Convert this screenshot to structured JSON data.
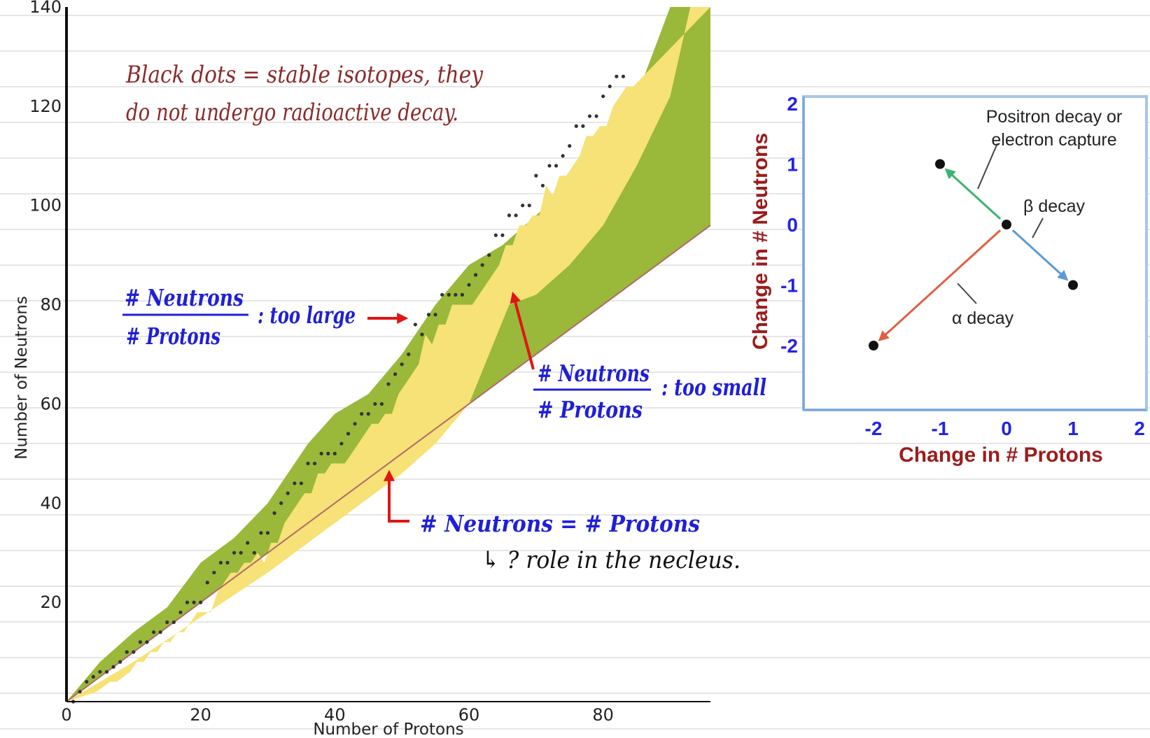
{
  "chart_data": [
    {
      "type": "scatter",
      "xlabel": "Number of Protons",
      "ylabel": "Number of Neutrons",
      "xlim": [
        0,
        96
      ],
      "ylim": [
        0,
        140
      ],
      "x_ticks": [
        "0",
        "20",
        "40",
        "60",
        "80"
      ],
      "y_ticks": [
        "20",
        "40",
        "60",
        "80",
        "100",
        "120",
        "140"
      ],
      "reference_line": {
        "label": "# Neutrons = # Protons",
        "points": [
          [
            0,
            0
          ],
          [
            96,
            96
          ]
        ]
      },
      "band_green_upper": [
        [
          0,
          0
        ],
        [
          5,
          8
        ],
        [
          10,
          14
        ],
        [
          15,
          19
        ],
        [
          20,
          28
        ],
        [
          25,
          33
        ],
        [
          30,
          40
        ],
        [
          33,
          46
        ],
        [
          36,
          52
        ],
        [
          40,
          58
        ],
        [
          45,
          62
        ],
        [
          50,
          70
        ],
        [
          55,
          80
        ],
        [
          60,
          88
        ],
        [
          65,
          92
        ],
        [
          70,
          98
        ],
        [
          75,
          104
        ],
        [
          80,
          112
        ],
        [
          85,
          122
        ],
        [
          90,
          140
        ],
        [
          96,
          140
        ]
      ],
      "band_yellow_lower": [
        [
          0,
          0
        ],
        [
          10,
          8
        ],
        [
          20,
          17
        ],
        [
          30,
          26
        ],
        [
          40,
          36
        ],
        [
          50,
          46
        ],
        [
          55,
          52
        ],
        [
          60,
          60
        ],
        [
          66,
          80
        ],
        [
          70,
          82
        ],
        [
          75,
          88
        ],
        [
          80,
          96
        ],
        [
          85,
          108
        ],
        [
          90,
          122
        ],
        [
          93,
          140
        ],
        [
          96,
          140
        ]
      ],
      "band_orange_upper": [
        [
          68,
          85
        ],
        [
          73,
          91
        ],
        [
          78,
          98
        ],
        [
          82,
          106
        ],
        [
          86,
          115
        ],
        [
          89,
          125
        ],
        [
          92,
          140
        ],
        [
          96,
          140
        ]
      ],
      "stable_isotopes_sample": [
        [
          1,
          0
        ],
        [
          2,
          2
        ],
        [
          3,
          4
        ],
        [
          4,
          5
        ],
        [
          5,
          6
        ],
        [
          6,
          6
        ],
        [
          7,
          7
        ],
        [
          8,
          8
        ],
        [
          9,
          10
        ],
        [
          10,
          10
        ],
        [
          11,
          12
        ],
        [
          12,
          12
        ],
        [
          13,
          14
        ],
        [
          14,
          14
        ],
        [
          15,
          16
        ],
        [
          16,
          16
        ],
        [
          17,
          18
        ],
        [
          18,
          20
        ],
        [
          19,
          20
        ],
        [
          20,
          20
        ],
        [
          21,
          24
        ],
        [
          22,
          26
        ],
        [
          23,
          28
        ],
        [
          24,
          28
        ],
        [
          25,
          30
        ],
        [
          26,
          30
        ],
        [
          27,
          32
        ],
        [
          28,
          30
        ],
        [
          29,
          34
        ],
        [
          30,
          34
        ],
        [
          31,
          38
        ],
        [
          32,
          40
        ],
        [
          33,
          42
        ],
        [
          34,
          44
        ],
        [
          35,
          44
        ],
        [
          36,
          48
        ],
        [
          37,
          48
        ],
        [
          38,
          50
        ],
        [
          39,
          50
        ],
        [
          40,
          50
        ],
        [
          41,
          52
        ],
        [
          42,
          54
        ],
        [
          43,
          56
        ],
        [
          44,
          58
        ],
        [
          45,
          58
        ],
        [
          46,
          60
        ],
        [
          47,
          60
        ],
        [
          48,
          64
        ],
        [
          49,
          66
        ],
        [
          50,
          68
        ],
        [
          51,
          70
        ],
        [
          52,
          76
        ],
        [
          53,
          74
        ],
        [
          54,
          78
        ],
        [
          55,
          78
        ],
        [
          56,
          82
        ],
        [
          57,
          82
        ],
        [
          58,
          82
        ],
        [
          59,
          82
        ],
        [
          60,
          84
        ],
        [
          61,
          86
        ],
        [
          62,
          88
        ],
        [
          63,
          90
        ],
        [
          64,
          94
        ],
        [
          65,
          94
        ],
        [
          66,
          98
        ],
        [
          67,
          98
        ],
        [
          68,
          100
        ],
        [
          69,
          100
        ],
        [
          70,
          106
        ],
        [
          71,
          104
        ],
        [
          72,
          108
        ],
        [
          73,
          108
        ],
        [
          74,
          110
        ],
        [
          75,
          112
        ],
        [
          76,
          116
        ],
        [
          77,
          116
        ],
        [
          78,
          118
        ],
        [
          79,
          118
        ],
        [
          80,
          122
        ],
        [
          81,
          124
        ],
        [
          82,
          126
        ],
        [
          83,
          126
        ]
      ],
      "annotations": {
        "stable_note_line1": "Black dots = stable isotopes, they",
        "stable_note_line2": "do not undergo radioactive decay.",
        "ratio_large_numerator": "# Neutrons",
        "ratio_large_denominator": "# Protons",
        "ratio_large_suffix": ": too large",
        "ratio_small_numerator": "# Neutrons",
        "ratio_small_denominator": "# Protons",
        "ratio_small_suffix": ": too small",
        "equal_line_label": "# Neutrons  =  # Protons",
        "equal_line_note": "↳ ? role in the necleus."
      },
      "colors": {
        "green_band": "#9ab83a",
        "yellow_band": "#f6e276",
        "orange_band": "#e8b055",
        "equal_line": "#b06a6a",
        "arrows_red": "#e01515"
      }
    },
    {
      "type": "scatter",
      "xlabel": "Change in # Protons",
      "ylabel": "Change in # Neutrons",
      "xlim": [
        -2,
        2
      ],
      "ylim": [
        -2,
        2
      ],
      "x_ticks": [
        "-2",
        "-1",
        "0",
        "1",
        "2"
      ],
      "y_ticks": [
        "2",
        "1",
        "0",
        "-1",
        "-2"
      ],
      "points": [
        [
          0,
          0
        ],
        [
          -1,
          1
        ],
        [
          1,
          -1
        ],
        [
          -2,
          -2
        ]
      ],
      "arrows": [
        {
          "from": [
            0,
            0
          ],
          "to": [
            -1,
            1
          ],
          "label": "Positron decay or electron capture",
          "color": "#3cb371"
        },
        {
          "from": [
            0,
            0
          ],
          "to": [
            1,
            -1
          ],
          "label": "β decay",
          "color": "#5b9bd5"
        },
        {
          "from": [
            0,
            0
          ],
          "to": [
            -2,
            -2
          ],
          "label": "α decay",
          "color": "#e06040"
        }
      ],
      "label_positron_line1": "Positron decay or",
      "label_positron_line2": "electron capture",
      "label_beta": "β decay",
      "label_alpha": "α decay",
      "colors": {
        "frame": "#a9c6e8",
        "ticks": "#2323e6",
        "titles": "#9b1c1c"
      }
    }
  ]
}
